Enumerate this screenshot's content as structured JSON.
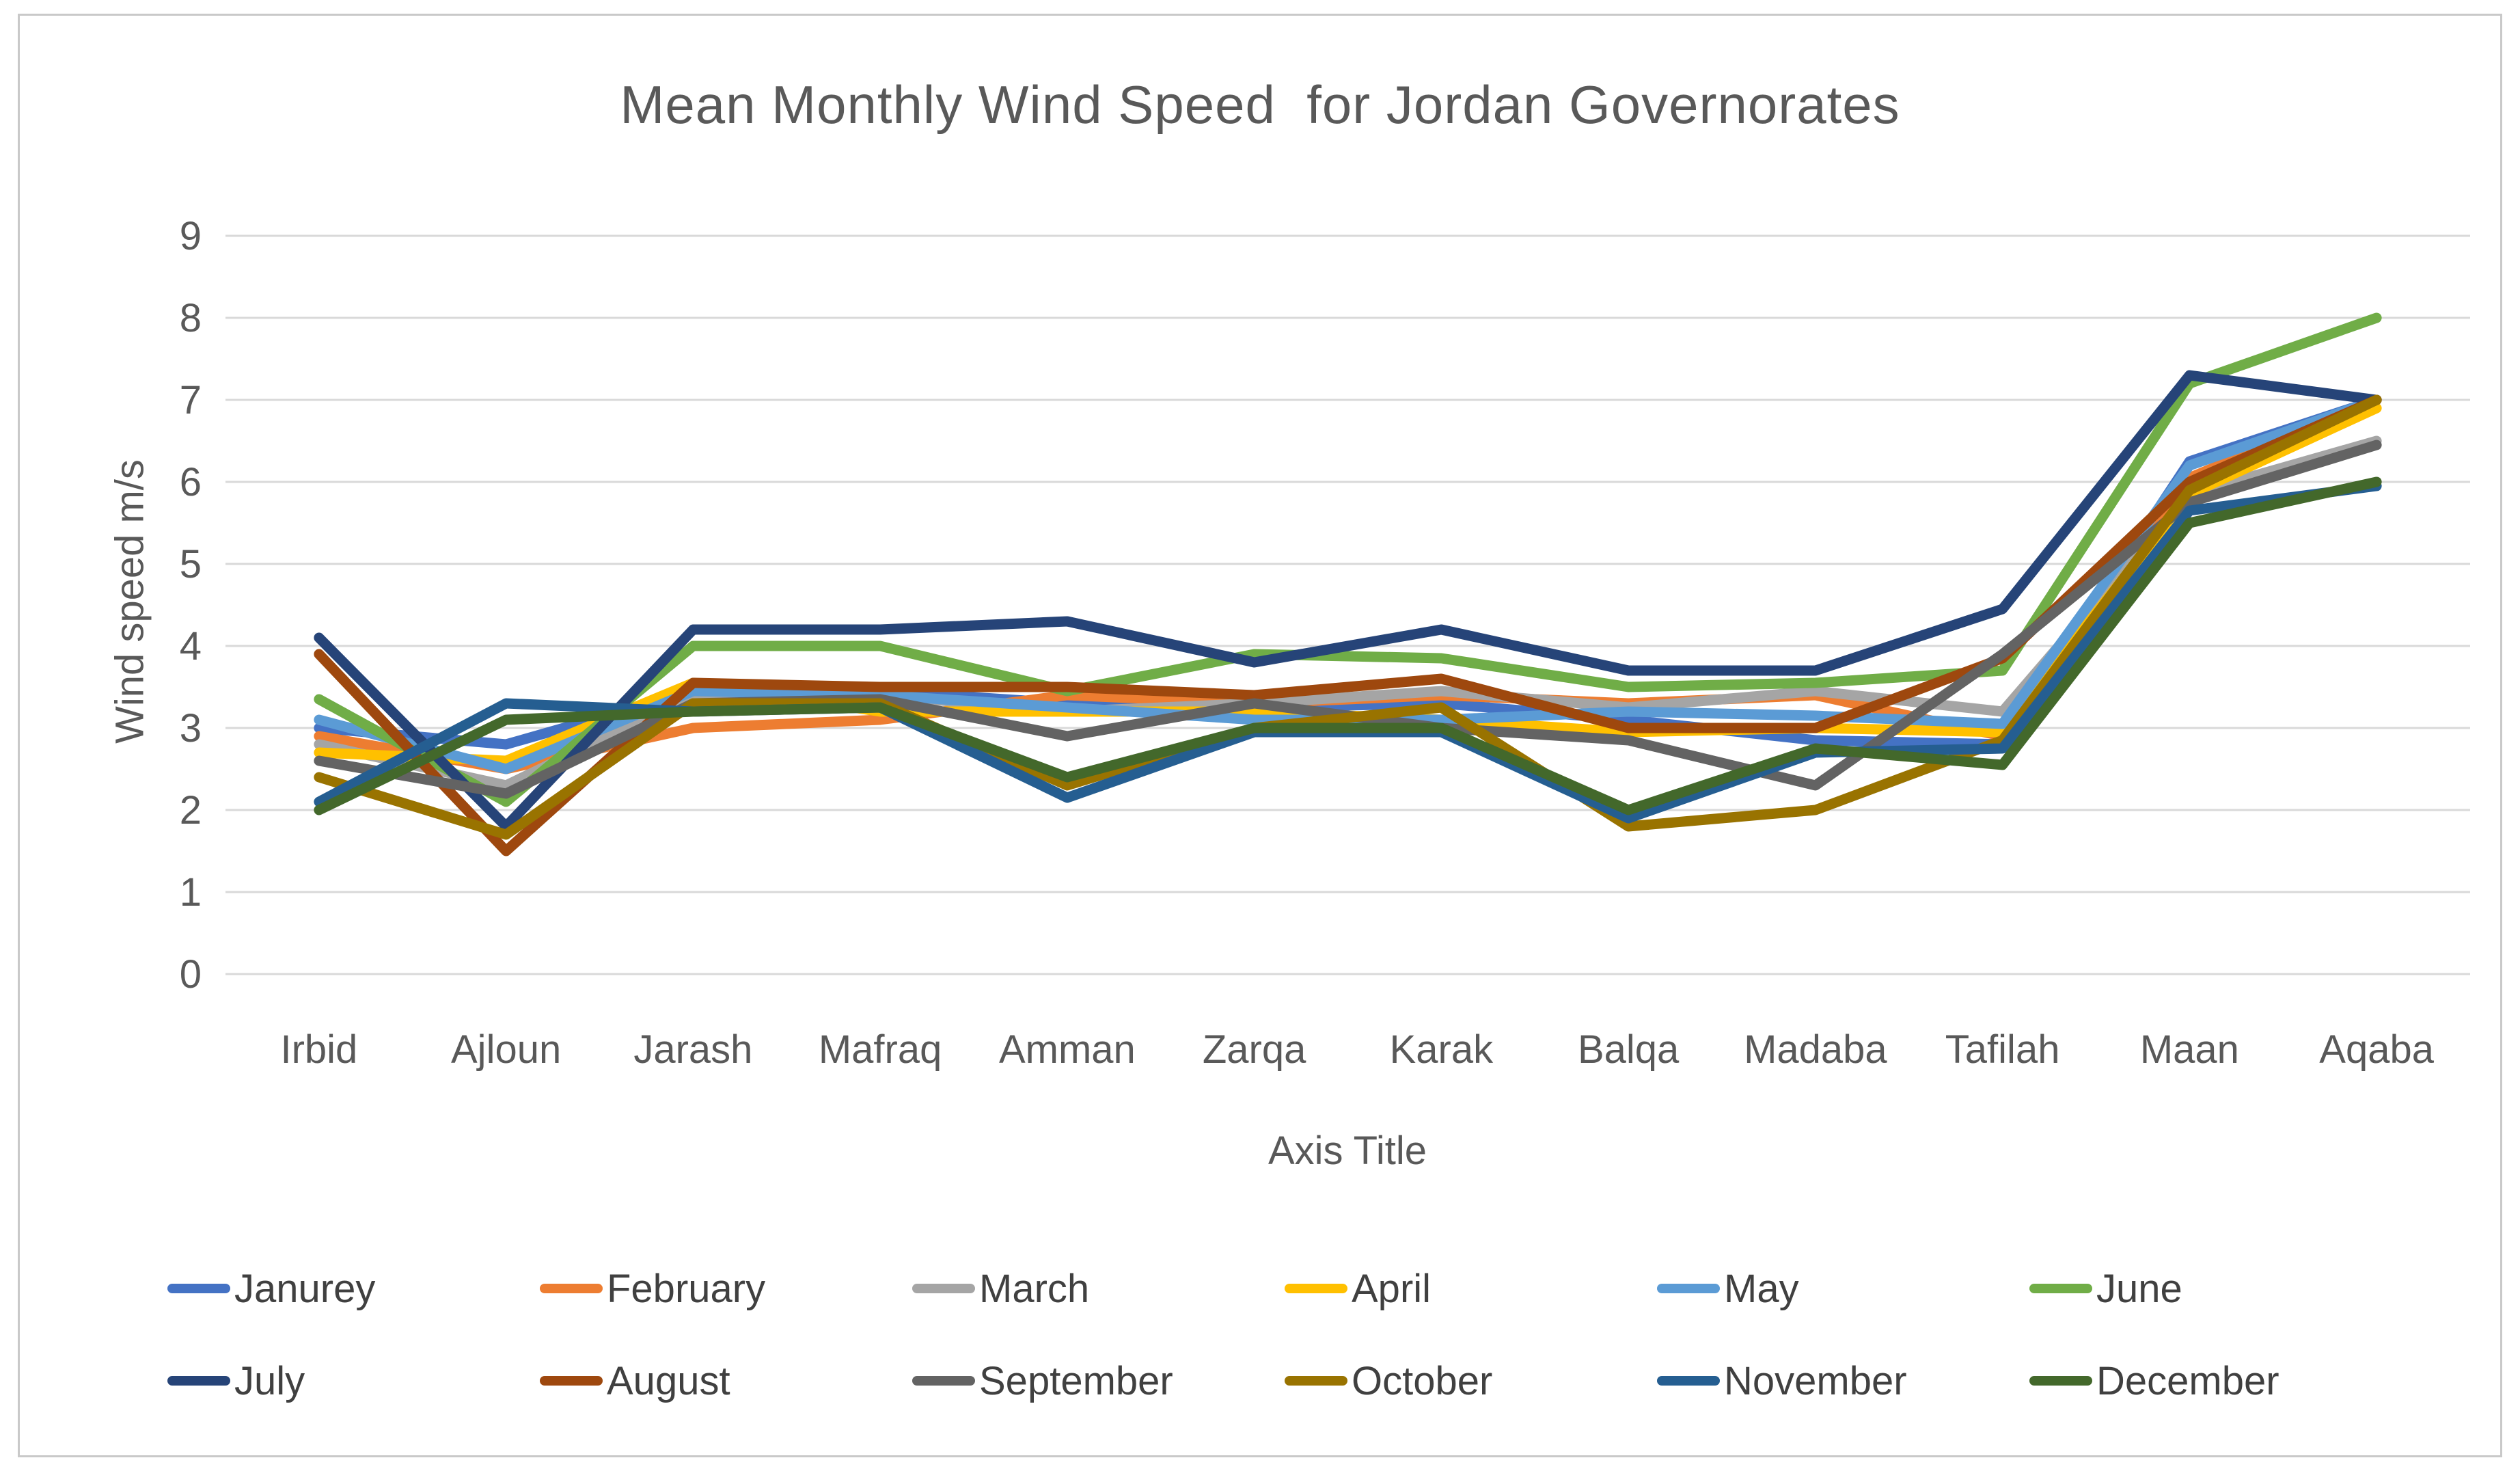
{
  "chart_data": {
    "type": "line",
    "title": "Mean Monthly Wind Speed  for Jordan Governorates",
    "xlabel": "Axis Title",
    "ylabel": "Wind speed m/s",
    "ylim": [
      0,
      9
    ],
    "ytick_step": 1,
    "yticks": [
      0,
      1,
      2,
      3,
      4,
      5,
      6,
      7,
      8,
      9
    ],
    "grid": true,
    "legend_position": "bottom",
    "axis_text_color": "#595959",
    "gridline_color": "#d9d9d9",
    "categories": [
      "Irbid",
      "Ajloun",
      "Jarash",
      "Mafraq",
      "Amman",
      "Zarqa",
      "Karak",
      "Balqa",
      "Madaba",
      "Tafilah",
      "Maan",
      "Aqaba"
    ],
    "series": [
      {
        "name": "Janurey",
        "color": "#4472C4",
        "values": [
          3.0,
          2.8,
          3.45,
          3.45,
          3.3,
          3.25,
          3.3,
          3.1,
          2.85,
          2.8,
          6.25,
          7.0
        ]
      },
      {
        "name": "February",
        "color": "#ED7D31",
        "values": [
          2.9,
          2.5,
          3.0,
          3.1,
          3.4,
          3.3,
          3.4,
          3.3,
          3.4,
          2.9,
          6.05,
          7.0
        ]
      },
      {
        "name": "March",
        "color": "#A5A5A5",
        "values": [
          2.8,
          2.3,
          3.4,
          3.4,
          3.2,
          3.3,
          3.45,
          3.25,
          3.45,
          3.2,
          5.85,
          6.5
        ]
      },
      {
        "name": "April",
        "color": "#FFC000",
        "values": [
          2.7,
          2.6,
          3.55,
          3.2,
          3.2,
          3.2,
          3.1,
          2.95,
          3.0,
          2.95,
          5.85,
          6.9
        ]
      },
      {
        "name": "May",
        "color": "#5B9BD5",
        "values": [
          3.1,
          2.5,
          3.45,
          3.4,
          3.25,
          3.1,
          3.1,
          3.2,
          3.15,
          3.05,
          6.2,
          7.0
        ]
      },
      {
        "name": "June",
        "color": "#70AD47",
        "values": [
          3.35,
          2.1,
          4.0,
          4.0,
          3.45,
          3.9,
          3.85,
          3.5,
          3.55,
          3.7,
          7.2,
          8.0
        ]
      },
      {
        "name": "July",
        "color": "#264478",
        "values": [
          4.1,
          1.8,
          4.2,
          4.2,
          4.3,
          3.8,
          4.2,
          3.7,
          3.7,
          4.45,
          7.3,
          7.0
        ]
      },
      {
        "name": "August",
        "color": "#9E480E",
        "values": [
          3.9,
          1.5,
          3.55,
          3.5,
          3.5,
          3.4,
          3.6,
          3.0,
          3.0,
          3.85,
          6.0,
          7.0
        ]
      },
      {
        "name": "September",
        "color": "#636363",
        "values": [
          2.6,
          2.2,
          3.3,
          3.35,
          2.9,
          3.3,
          3.0,
          2.85,
          2.3,
          3.9,
          5.75,
          6.45
        ]
      },
      {
        "name": "October",
        "color": "#997300",
        "values": [
          2.4,
          1.7,
          3.3,
          3.3,
          2.3,
          3.0,
          3.25,
          1.8,
          2.0,
          2.85,
          5.9,
          7.0
        ]
      },
      {
        "name": "November",
        "color": "#255E91",
        "values": [
          2.1,
          3.3,
          3.2,
          3.25,
          2.15,
          2.95,
          2.95,
          1.9,
          2.7,
          2.75,
          5.65,
          5.95
        ]
      },
      {
        "name": "December",
        "color": "#43682B",
        "values": [
          2.0,
          3.1,
          3.2,
          3.25,
          2.4,
          3.0,
          3.0,
          2.0,
          2.75,
          2.55,
          5.5,
          6.0
        ]
      }
    ]
  }
}
